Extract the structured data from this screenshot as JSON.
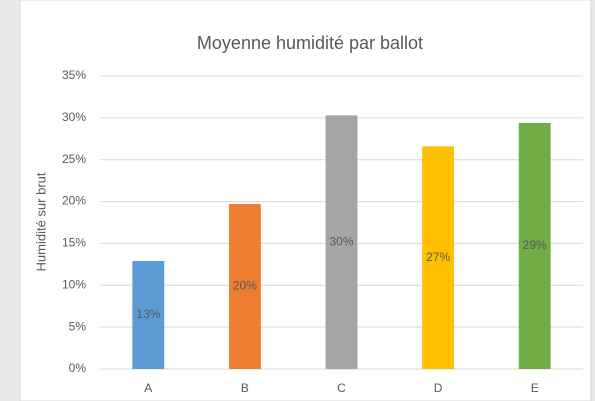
{
  "chart_data": {
    "type": "bar",
    "title": "Moyenne humidité par ballot",
    "y_label": "Humidité sur brut",
    "categories": [
      "A",
      "B",
      "C",
      "D",
      "E"
    ],
    "values": [
      12.9,
      19.7,
      30.3,
      26.6,
      29.4
    ],
    "value_labels": [
      "13%",
      "20%",
      "30%",
      "27%",
      "29%"
    ],
    "colors": [
      "#5b9bd5",
      "#ed7d31",
      "#a5a5a5",
      "#ffc000",
      "#70ad47"
    ],
    "ylim": [
      0,
      35
    ],
    "yticks": [
      {
        "value": 0,
        "label": "0%"
      },
      {
        "value": 5,
        "label": "5%"
      },
      {
        "value": 10,
        "label": "10%"
      },
      {
        "value": 15,
        "label": "15%"
      },
      {
        "value": 20,
        "label": "20%"
      },
      {
        "value": 25,
        "label": "25%"
      },
      {
        "value": 30,
        "label": "30%"
      },
      {
        "value": 35,
        "label": "35%"
      }
    ],
    "grid": true
  }
}
